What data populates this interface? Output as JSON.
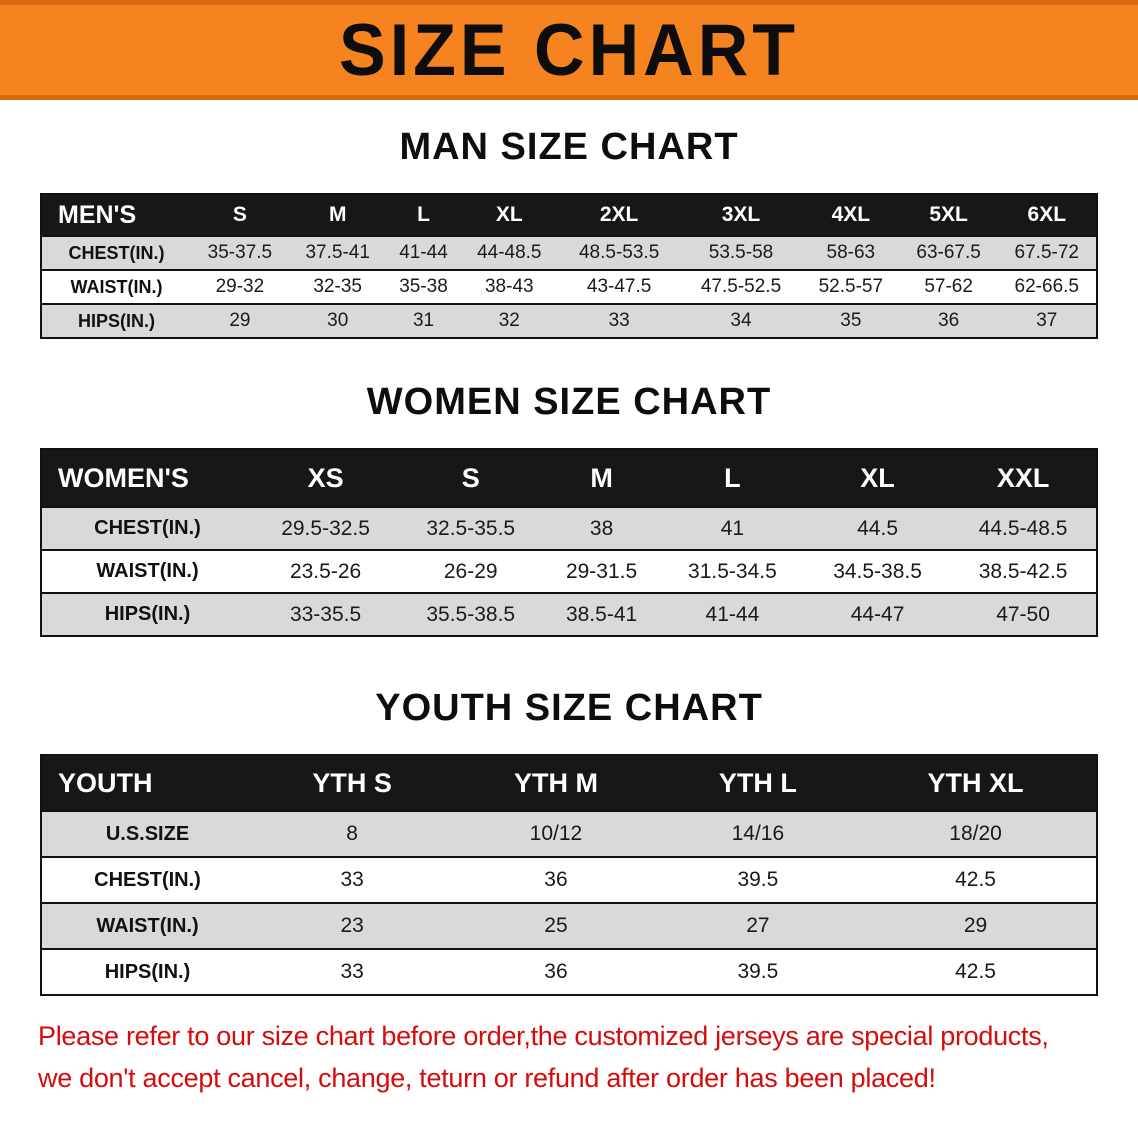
{
  "banner": {
    "title": "SIZE CHART"
  },
  "colors": {
    "banner_bg": "#f5831f",
    "table_header_bg": "#171717",
    "row_stripe": "#d9d9d9",
    "notice_text": "#d60c0c"
  },
  "sections": [
    {
      "title": "MAN SIZE CHART",
      "header": [
        "MEN'S",
        "S",
        "M",
        "L",
        "XL",
        "2XL",
        "3XL",
        "4XL",
        "5XL",
        "6XL"
      ],
      "rows": [
        {
          "label": "CHEST(IN.)",
          "values": [
            "35-37.5",
            "37.5-41",
            "41-44",
            "44-48.5",
            "48.5-53.5",
            "53.5-58",
            "58-63",
            "63-67.5",
            "67.5-72"
          ]
        },
        {
          "label": "WAIST(IN.)",
          "values": [
            "29-32",
            "32-35",
            "35-38",
            "38-43",
            "43-47.5",
            "47.5-52.5",
            "52.5-57",
            "57-62",
            "62-66.5"
          ]
        },
        {
          "label": "HIPS(IN.)",
          "values": [
            "29",
            "30",
            "31",
            "32",
            "33",
            "34",
            "35",
            "36",
            "37"
          ]
        }
      ]
    },
    {
      "title": "WOMEN SIZE CHART",
      "header": [
        "WOMEN'S",
        "XS",
        "S",
        "M",
        "L",
        "XL",
        "XXL"
      ],
      "rows": [
        {
          "label": "CHEST(IN.)",
          "values": [
            "29.5-32.5",
            "32.5-35.5",
            "38",
            "41",
            "44.5",
            "44.5-48.5"
          ]
        },
        {
          "label": "WAIST(IN.)",
          "values": [
            "23.5-26",
            "26-29",
            "29-31.5",
            "31.5-34.5",
            "34.5-38.5",
            "38.5-42.5"
          ]
        },
        {
          "label": "HIPS(IN.)",
          "values": [
            "33-35.5",
            "35.5-38.5",
            "38.5-41",
            "41-44",
            "44-47",
            "47-50"
          ]
        }
      ]
    },
    {
      "title": "YOUTH SIZE CHART",
      "header": [
        "YOUTH",
        "YTH S",
        "YTH M",
        "YTH L",
        "YTH XL"
      ],
      "rows": [
        {
          "label": "U.S.SIZE",
          "values": [
            "8",
            "10/12",
            "14/16",
            "18/20"
          ]
        },
        {
          "label": "CHEST(IN.)",
          "values": [
            "33",
            "36",
            "39.5",
            "42.5"
          ]
        },
        {
          "label": "WAIST(IN.)",
          "values": [
            "23",
            "25",
            "27",
            "29"
          ]
        },
        {
          "label": "HIPS(IN.)",
          "values": [
            "33",
            "36",
            "39.5",
            "42.5"
          ]
        }
      ]
    }
  ],
  "notice": {
    "line1": "Please refer to our size chart before order,the customized jerseys are special products,",
    "line2": "we don't accept cancel, change, teturn or refund after order has been placed!"
  }
}
